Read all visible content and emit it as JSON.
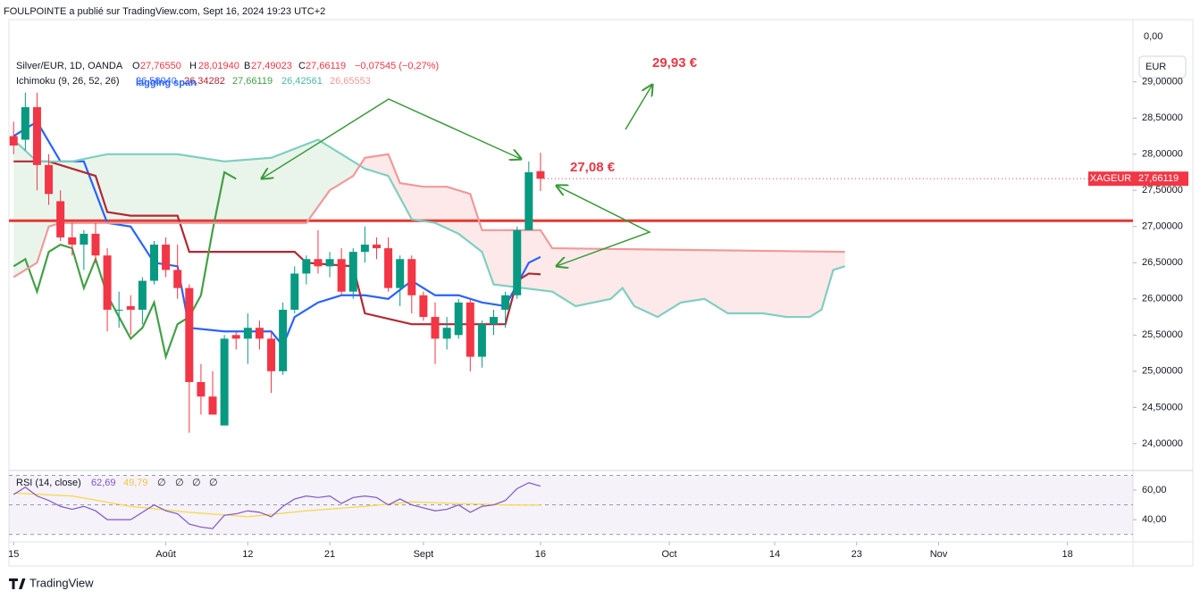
{
  "header": {
    "published": "FOULPOINTE a publié sur TradingView.com, Sept 16, 2024 19:23 UTC+2",
    "symbol": "Silver/EUR, 1D, OANDA",
    "ohlc": [
      {
        "key": "O",
        "value": "27,76550"
      },
      {
        "key": "H",
        "value": "28,01940"
      },
      {
        "key": "B",
        "value": "27,49023"
      },
      {
        "key": "C",
        "value": "27,66119"
      }
    ],
    "change": "−0,07545 (−0,27%)",
    "ichimoku": "Ichimoku (9, 26, 52, 26)",
    "ichimoku_values": [
      "26,58040",
      "26,34282",
      "27,66119",
      "26,42561",
      "26,65553"
    ],
    "lagging_note": "lagging span",
    "rsi": "RSI (14, close)",
    "rsi_values": [
      "62,69",
      "49,79"
    ],
    "rsi_empty": [
      "∅",
      "∅",
      "∅",
      "∅"
    ],
    "currency": "EUR",
    "top_label": "0,00",
    "brand": "TradingView"
  },
  "chart_data": [
    {
      "type": "candlestick",
      "x": [
        0,
        1,
        2,
        3,
        4,
        5,
        6,
        7,
        8,
        9,
        10,
        11,
        12,
        13,
        14,
        15,
        16,
        17,
        18,
        19,
        20,
        21,
        22,
        23,
        24,
        25,
        26,
        27,
        28,
        29,
        30,
        31,
        32,
        33,
        34,
        35,
        36,
        37,
        38,
        39,
        40,
        41,
        42,
        43,
        44,
        45
      ],
      "open": [
        28.25,
        28.2,
        28.65,
        27.85,
        27.35,
        26.85,
        26.75,
        26.9,
        26.6,
        25.85,
        25.9,
        25.85,
        26.25,
        26.75,
        26.4,
        26.15,
        24.85,
        24.65,
        24.25,
        25.5,
        25.45,
        25.6,
        25.45,
        25.0,
        25.85,
        26.35,
        26.55,
        26.45,
        26.55,
        26.1,
        26.65,
        26.75,
        26.7,
        26.15,
        26.55,
        26.05,
        25.75,
        25.45,
        25.5,
        25.95,
        25.2,
        25.65,
        25.85,
        26.05,
        26.95,
        27.7655
      ],
      "high": [
        28.45,
        28.85,
        28.85,
        28.0,
        27.5,
        27.05,
        26.95,
        27.05,
        26.7,
        26.1,
        26.05,
        26.3,
        26.8,
        26.85,
        26.75,
        26.2,
        25.1,
        25.0,
        25.5,
        25.55,
        25.8,
        25.7,
        25.55,
        25.95,
        26.45,
        26.6,
        26.95,
        26.65,
        26.7,
        26.7,
        27.0,
        26.85,
        26.85,
        26.6,
        26.6,
        26.1,
        25.95,
        25.75,
        26.0,
        26.0,
        25.7,
        25.85,
        26.1,
        27.0,
        27.9,
        28.0194
      ],
      "low": [
        28.0,
        28.05,
        27.5,
        27.3,
        26.8,
        26.6,
        26.4,
        26.5,
        25.55,
        25.6,
        25.5,
        25.65,
        26.2,
        26.3,
        26.0,
        24.15,
        24.4,
        24.4,
        24.25,
        25.3,
        25.1,
        25.3,
        24.7,
        24.95,
        25.8,
        26.2,
        26.35,
        26.3,
        26.05,
        26.0,
        26.5,
        26.55,
        26.1,
        25.9,
        25.8,
        25.7,
        25.1,
        25.3,
        25.45,
        25.0,
        25.05,
        25.5,
        25.6,
        26.0,
        26.95,
        27.49023
      ],
      "close": [
        28.12,
        28.65,
        27.85,
        27.45,
        26.85,
        26.75,
        26.9,
        26.6,
        25.85,
        25.85,
        25.85,
        26.25,
        26.75,
        26.4,
        26.15,
        24.85,
        24.65,
        24.4,
        25.45,
        25.45,
        25.6,
        25.45,
        25.0,
        25.85,
        26.35,
        26.55,
        26.45,
        26.55,
        26.1,
        26.65,
        26.75,
        26.7,
        26.15,
        26.55,
        26.05,
        25.75,
        25.45,
        25.6,
        25.95,
        25.2,
        25.65,
        25.75,
        26.05,
        26.95,
        27.75,
        27.66119
      ],
      "up_color": "#089981",
      "down_color": "#f23645",
      "lines": [
        {
          "color": "#2962ff",
          "x": [
            0,
            2,
            4,
            6,
            8,
            10,
            12,
            14,
            15,
            18,
            22,
            23,
            24,
            26,
            28,
            30,
            32,
            34,
            35,
            36,
            38,
            40,
            42,
            44,
            45
          ],
          "values": [
            28.25,
            28.45,
            27.9,
            27.9,
            27.05,
            27.0,
            26.5,
            26.45,
            25.6,
            25.55,
            25.55,
            25.35,
            25.75,
            25.95,
            26.05,
            26.05,
            26.0,
            26.25,
            26.15,
            26.05,
            26.05,
            25.95,
            25.9,
            26.5,
            26.58
          ]
        },
        {
          "color": "#b22833",
          "x": [
            0,
            3,
            7,
            8,
            10,
            14,
            15,
            24,
            25,
            29,
            30,
            34,
            42,
            43,
            44,
            45
          ],
          "values": [
            27.9,
            27.9,
            27.7,
            27.2,
            27.15,
            27.15,
            26.65,
            26.65,
            26.5,
            26.45,
            25.8,
            25.65,
            25.65,
            26.25,
            26.35,
            26.34
          ]
        },
        {
          "color": "#43a047",
          "x": [
            0,
            1,
            2,
            3,
            4,
            5,
            6,
            7,
            8,
            9,
            10,
            11,
            12,
            13,
            14,
            15,
            16,
            17,
            18,
            19
          ],
          "values": [
            26.45,
            26.55,
            26.1,
            26.65,
            26.75,
            26.7,
            26.15,
            26.55,
            26.05,
            25.75,
            25.45,
            25.6,
            25.95,
            25.2,
            25.65,
            25.75,
            26.05,
            26.95,
            27.75,
            27.66
          ]
        },
        {
          "color": "#7fcfc1",
          "x": [
            0,
            2,
            5,
            8,
            14,
            18,
            22,
            26,
            28,
            30,
            32,
            34,
            36,
            38,
            40,
            41,
            46,
            48,
            51,
            52,
            53,
            55,
            57,
            59,
            61,
            64,
            66,
            68,
            69,
            70,
            71
          ],
          "values": [
            28.2,
            27.9,
            27.9,
            28.0,
            28.0,
            27.9,
            27.95,
            28.2,
            28.0,
            27.8,
            27.7,
            27.1,
            27.05,
            26.9,
            26.65,
            26.2,
            26.1,
            25.9,
            26.0,
            26.15,
            25.9,
            25.75,
            25.95,
            26.0,
            25.8,
            25.8,
            25.75,
            25.75,
            25.85,
            26.4,
            26.45
          ]
        },
        {
          "color": "#ef9a9a",
          "x": [
            0,
            2,
            3,
            4,
            25,
            27,
            29,
            30,
            32,
            33,
            35,
            37,
            39,
            40,
            45,
            46,
            71
          ],
          "values": [
            26.3,
            26.5,
            27.0,
            27.05,
            27.05,
            27.5,
            27.7,
            27.95,
            28.0,
            27.6,
            27.55,
            27.55,
            27.45,
            26.95,
            26.95,
            26.7,
            26.65
          ]
        }
      ],
      "hline": {
        "value": 27.08,
        "color": "#e53935"
      },
      "annotations": [
        "27,08 €",
        "29,93 €"
      ],
      "last_price": {
        "label": "XAGEUR",
        "value": {
          "value": 27.66119,
          "label": "27,66119"
        }
      },
      "xlim": [
        -0.4,
        95.6
      ],
      "ylim": [
        23.69,
        29.86
      ],
      "yticks": [
        {
          "value": 24,
          "label": "24,00000"
        },
        {
          "value": 24.5,
          "label": "24,50000"
        },
        {
          "value": 25,
          "label": "25,00000"
        },
        {
          "value": 25.5,
          "label": "25,50000"
        },
        {
          "value": 26,
          "label": "26,00000"
        },
        {
          "value": 26.5,
          "label": "26,50000"
        },
        {
          "value": 27,
          "label": "27,00000"
        },
        {
          "value": 27.5,
          "label": "27,50000"
        },
        {
          "value": 28,
          "label": "28,00000"
        },
        {
          "value": 28.5,
          "label": "28,50000"
        },
        {
          "value": 29,
          "label": "29,00000"
        }
      ],
      "xticks": [
        {
          "value": 0,
          "label": "15"
        },
        {
          "value": 13,
          "label": "Août"
        },
        {
          "value": 20,
          "label": "12"
        },
        {
          "value": 27,
          "label": "21"
        },
        {
          "value": 35,
          "label": "Sept"
        },
        {
          "value": 45,
          "label": "16"
        },
        {
          "value": 56,
          "label": "Oct"
        },
        {
          "value": 65,
          "label": "14"
        },
        {
          "value": 72,
          "label": "23"
        },
        {
          "value": 79,
          "label": "Nov"
        },
        {
          "value": 90,
          "label": "18"
        }
      ],
      "grid": false
    },
    {
      "type": "line",
      "x": [
        0,
        1,
        2,
        3,
        4,
        5,
        6,
        7,
        8,
        9,
        10,
        11,
        12,
        13,
        14,
        15,
        16,
        17,
        18,
        19,
        20,
        21,
        22,
        23,
        24,
        25,
        26,
        27,
        28,
        29,
        30,
        31,
        32,
        33,
        34,
        35,
        36,
        37,
        38,
        39,
        40,
        41,
        42,
        43,
        44,
        45
      ],
      "values": [
        57,
        62,
        56,
        53,
        49,
        47,
        49,
        46,
        40,
        40,
        40,
        45,
        50,
        46,
        44,
        37,
        35,
        34,
        43,
        44,
        46,
        45,
        42,
        49,
        54,
        56,
        55,
        56,
        51,
        55,
        56,
        55,
        50,
        54,
        50,
        48,
        46,
        47,
        50,
        45,
        49,
        50,
        53,
        61,
        65,
        62.69
      ],
      "color": "#7e57c2",
      "ma": {
        "x": [
          0,
          5,
          10,
          15,
          20,
          25,
          30,
          34,
          38,
          42,
          45
        ],
        "values": [
          58,
          56,
          49,
          45,
          42,
          46,
          49,
          52,
          51,
          50,
          49.79
        ],
        "color": "#f6d743"
      },
      "bands": [
        70,
        50,
        30
      ],
      "ylim": [
        25,
        73.3
      ],
      "yticks": [
        {
          "value": 60,
          "label": "60,00"
        },
        {
          "value": 40,
          "label": "40,00"
        }
      ]
    }
  ]
}
